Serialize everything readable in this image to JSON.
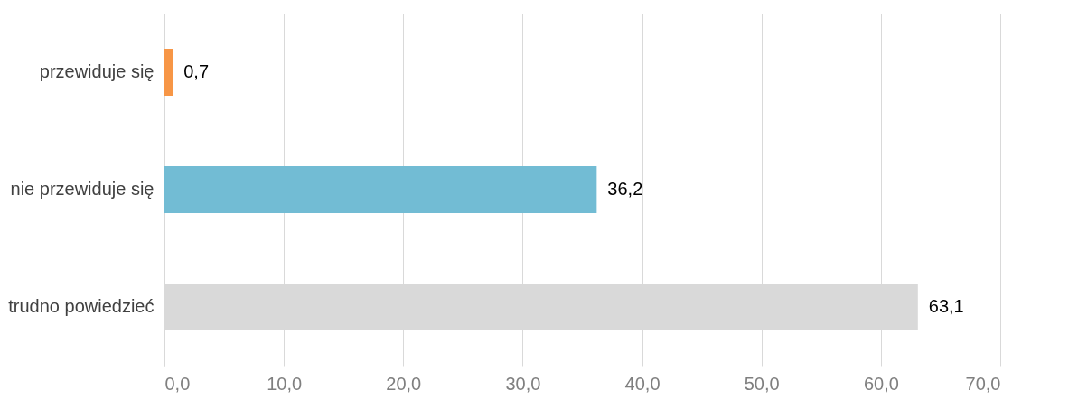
{
  "chart_data": {
    "type": "bar",
    "orientation": "horizontal",
    "categories": [
      "przewiduje się",
      "nie przewiduje się",
      "trudno powiedzieć"
    ],
    "values": [
      0.7,
      36.2,
      63.1
    ],
    "colors": [
      "#f79646",
      "#72bcd4",
      "#d9d9d9"
    ],
    "value_labels": [
      "0,7",
      "36,2",
      "63,1"
    ],
    "xlim": [
      0,
      70
    ],
    "xticks": [
      {
        "value": 0,
        "label": "0,0"
      },
      {
        "value": 10,
        "label": "10,0"
      },
      {
        "value": 20,
        "label": "20,0"
      },
      {
        "value": 30,
        "label": "30,0"
      },
      {
        "value": 40,
        "label": "40,0"
      },
      {
        "value": 50,
        "label": "50,0"
      },
      {
        "value": 60,
        "label": "60,0"
      },
      {
        "value": 70,
        "label": "70,0"
      }
    ],
    "grid": "x"
  }
}
